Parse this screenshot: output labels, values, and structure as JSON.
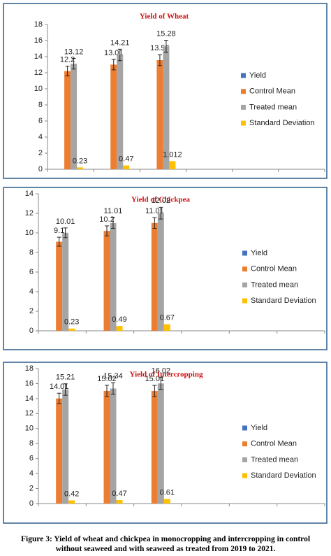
{
  "chart_data": [
    {
      "type": "bar",
      "title": "Yield of Wheat",
      "categories": [
        null,
        null,
        null,
        null,
        null,
        null
      ],
      "series": [
        {
          "name": "Yield",
          "color": "#4472c4",
          "values": [
            null,
            null,
            null,
            null,
            null,
            null
          ]
        },
        {
          "name": "Control Mean",
          "color": "#ed7d31",
          "values": [
            12.2,
            13.01,
            13.56,
            null,
            null,
            null
          ],
          "errors": [
            0.6,
            0.65,
            0.68,
            null,
            null,
            null
          ]
        },
        {
          "name": "Treated mean",
          "color": "#a5a5a5",
          "values": [
            13.12,
            14.21,
            15.28,
            null,
            null,
            null
          ],
          "errors": [
            0.66,
            0.71,
            0.76,
            null,
            null,
            null
          ]
        },
        {
          "name": "Standard Deviation",
          "color": "#ffc000",
          "values": [
            0.23,
            0.47,
            1.012,
            null,
            null,
            null
          ]
        }
      ],
      "ylim": [
        0,
        18
      ],
      "yticks": [
        0,
        2,
        4,
        6,
        8,
        10,
        12,
        14,
        16,
        18
      ],
      "legend": "right"
    },
    {
      "type": "bar",
      "title": "Yield of Chickpea",
      "categories": [
        null,
        null,
        null,
        null,
        null,
        null
      ],
      "series": [
        {
          "name": "Yield",
          "color": "#4472c4",
          "values": [
            null,
            null,
            null,
            null,
            null,
            null
          ]
        },
        {
          "name": "Control Mean",
          "color": "#ed7d31",
          "values": [
            9.1,
            10.2,
            11.01,
            null,
            null,
            null
          ],
          "errors": [
            0.46,
            0.51,
            0.55,
            null,
            null,
            null
          ]
        },
        {
          "name": "Treated mean",
          "color": "#a5a5a5",
          "values": [
            10.01,
            11.01,
            12.02,
            null,
            null,
            null
          ],
          "errors": [
            0.5,
            0.55,
            0.6,
            null,
            null,
            null
          ]
        },
        {
          "name": "Standard Deviation",
          "color": "#ffc000",
          "values": [
            0.23,
            0.49,
            0.67,
            null,
            null,
            null
          ]
        }
      ],
      "ylim": [
        0,
        14
      ],
      "yticks": [
        0,
        2,
        4,
        6,
        8,
        10,
        12,
        14
      ],
      "legend": "right"
    },
    {
      "type": "bar",
      "title": "Yield of Intercropping",
      "categories": [
        null,
        null,
        null,
        null,
        null,
        null
      ],
      "series": [
        {
          "name": "Yield",
          "color": "#4472c4",
          "values": [
            null,
            null,
            null,
            null,
            null,
            null
          ]
        },
        {
          "name": "Control Mean",
          "color": "#ed7d31",
          "values": [
            14.01,
            15.02,
            15.01,
            null,
            null,
            null
          ],
          "errors": [
            0.7,
            0.75,
            0.75,
            null,
            null,
            null
          ]
        },
        {
          "name": "Treated mean",
          "color": "#a5a5a5",
          "values": [
            15.21,
            15.34,
            16.02,
            null,
            null,
            null
          ],
          "errors": [
            0.76,
            0.77,
            0.8,
            null,
            null,
            null
          ]
        },
        {
          "name": "Standard Deviation",
          "color": "#ffc000",
          "values": [
            0.42,
            0.47,
            0.61,
            null,
            null,
            null
          ]
        }
      ],
      "ylim": [
        0,
        18
      ],
      "yticks": [
        0,
        2,
        4,
        6,
        8,
        10,
        12,
        14,
        16,
        18
      ],
      "legend": "right"
    }
  ],
  "caption": "Figure 3: Yield of wheat and chickpea in monocropping and intercropping in control without seaweed and with seaweed as treated from 2019 to 2021."
}
